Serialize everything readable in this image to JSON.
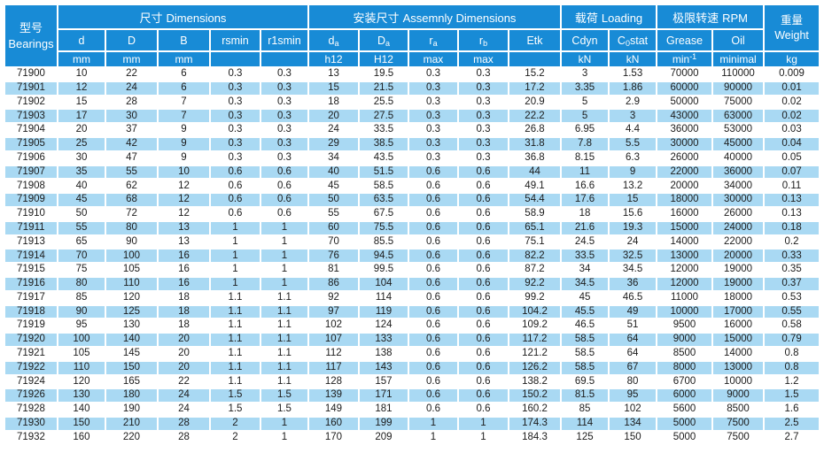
{
  "colors": {
    "header_blue": "#188bd6",
    "stripe_blue": "#a9d9f3",
    "row_white": "#ffffff",
    "header_text": "#ffffff",
    "data_text": "#1c1c1c"
  },
  "table": {
    "groups": {
      "bearings": {
        "zh": "型号",
        "en": "Bearings"
      },
      "dimensions": {
        "zh": "尺寸",
        "en": "Dimensions"
      },
      "assembly": {
        "zh": "安装尺寸",
        "en": "Assemnly Dimensions"
      },
      "loading": {
        "zh": "载荷",
        "en": "Loading"
      },
      "rpm": {
        "zh": "极限转速",
        "en": "RPM"
      },
      "weight": {
        "zh": "重量",
        "en": "Weight"
      }
    },
    "columns": [
      {
        "pre": "d"
      },
      {
        "pre": "D"
      },
      {
        "pre": "B"
      },
      {
        "pre": "rsmin"
      },
      {
        "pre": "r1smin"
      },
      {
        "pre": "d",
        "sub": "a"
      },
      {
        "pre": "D",
        "sub": "a"
      },
      {
        "pre": "r",
        "sub": "a"
      },
      {
        "pre": "r",
        "sub": "b"
      },
      {
        "pre": "Etk"
      },
      {
        "pre": "Cdyn"
      },
      {
        "pre": "C",
        "sub": "0",
        "post": "stat"
      },
      {
        "pre": "Grease"
      },
      {
        "pre": "Oil"
      }
    ],
    "units": [
      {
        "pre": "mm"
      },
      {
        "pre": "mm"
      },
      {
        "pre": "mm"
      },
      {
        "pre": ""
      },
      {
        "pre": ""
      },
      {
        "pre": "h12"
      },
      {
        "pre": "H12"
      },
      {
        "pre": "max"
      },
      {
        "pre": "max"
      },
      {
        "pre": ""
      },
      {
        "pre": "kN"
      },
      {
        "pre": "kN"
      },
      {
        "pre": "min",
        "sup": "-1"
      },
      {
        "pre": "minimal"
      },
      {
        "pre": "kg"
      }
    ],
    "rows": [
      [
        "71900",
        "10",
        "22",
        "6",
        "0.3",
        "0.3",
        "13",
        "19.5",
        "0.3",
        "0.3",
        "15.2",
        "3",
        "1.53",
        "70000",
        "110000",
        "0.009"
      ],
      [
        "71901",
        "12",
        "24",
        "6",
        "0.3",
        "0.3",
        "15",
        "21.5",
        "0.3",
        "0.3",
        "17.2",
        "3.35",
        "1.86",
        "60000",
        "90000",
        "0.01"
      ],
      [
        "71902",
        "15",
        "28",
        "7",
        "0.3",
        "0.3",
        "18",
        "25.5",
        "0.3",
        "0.3",
        "20.9",
        "5",
        "2.9",
        "50000",
        "75000",
        "0.02"
      ],
      [
        "71903",
        "17",
        "30",
        "7",
        "0.3",
        "0.3",
        "20",
        "27.5",
        "0.3",
        "0.3",
        "22.2",
        "5",
        "3",
        "43000",
        "63000",
        "0.02"
      ],
      [
        "71904",
        "20",
        "37",
        "9",
        "0.3",
        "0.3",
        "24",
        "33.5",
        "0.3",
        "0.3",
        "26.8",
        "6.95",
        "4.4",
        "36000",
        "53000",
        "0.03"
      ],
      [
        "71905",
        "25",
        "42",
        "9",
        "0.3",
        "0.3",
        "29",
        "38.5",
        "0.3",
        "0.3",
        "31.8",
        "7.8",
        "5.5",
        "30000",
        "45000",
        "0.04"
      ],
      [
        "71906",
        "30",
        "47",
        "9",
        "0.3",
        "0.3",
        "34",
        "43.5",
        "0.3",
        "0.3",
        "36.8",
        "8.15",
        "6.3",
        "26000",
        "40000",
        "0.05"
      ],
      [
        "71907",
        "35",
        "55",
        "10",
        "0.6",
        "0.6",
        "40",
        "51.5",
        "0.6",
        "0.6",
        "44",
        "11",
        "9",
        "22000",
        "36000",
        "0.07"
      ],
      [
        "71908",
        "40",
        "62",
        "12",
        "0.6",
        "0.6",
        "45",
        "58.5",
        "0.6",
        "0.6",
        "49.1",
        "16.6",
        "13.2",
        "20000",
        "34000",
        "0.11"
      ],
      [
        "71909",
        "45",
        "68",
        "12",
        "0.6",
        "0.6",
        "50",
        "63.5",
        "0.6",
        "0.6",
        "54.4",
        "17.6",
        "15",
        "18000",
        "30000",
        "0.13"
      ],
      [
        "71910",
        "50",
        "72",
        "12",
        "0.6",
        "0.6",
        "55",
        "67.5",
        "0.6",
        "0.6",
        "58.9",
        "18",
        "15.6",
        "16000",
        "26000",
        "0.13"
      ],
      [
        "71911",
        "55",
        "80",
        "13",
        "1",
        "1",
        "60",
        "75.5",
        "0.6",
        "0.6",
        "65.1",
        "21.6",
        "19.3",
        "15000",
        "24000",
        "0.18"
      ],
      [
        "71913",
        "65",
        "90",
        "13",
        "1",
        "1",
        "70",
        "85.5",
        "0.6",
        "0.6",
        "75.1",
        "24.5",
        "24",
        "14000",
        "22000",
        "0.2"
      ],
      [
        "71914",
        "70",
        "100",
        "16",
        "1",
        "1",
        "76",
        "94.5",
        "0.6",
        "0.6",
        "82.2",
        "33.5",
        "32.5",
        "13000",
        "20000",
        "0.33"
      ],
      [
        "71915",
        "75",
        "105",
        "16",
        "1",
        "1",
        "81",
        "99.5",
        "0.6",
        "0.6",
        "87.2",
        "34",
        "34.5",
        "12000",
        "19000",
        "0.35"
      ],
      [
        "71916",
        "80",
        "110",
        "16",
        "1",
        "1",
        "86",
        "104",
        "0.6",
        "0.6",
        "92.2",
        "34.5",
        "36",
        "12000",
        "19000",
        "0.37"
      ],
      [
        "71917",
        "85",
        "120",
        "18",
        "1.1",
        "1.1",
        "92",
        "114",
        "0.6",
        "0.6",
        "99.2",
        "45",
        "46.5",
        "11000",
        "18000",
        "0.53"
      ],
      [
        "71918",
        "90",
        "125",
        "18",
        "1.1",
        "1.1",
        "97",
        "119",
        "0.6",
        "0.6",
        "104.2",
        "45.5",
        "49",
        "10000",
        "17000",
        "0.55"
      ],
      [
        "71919",
        "95",
        "130",
        "18",
        "1.1",
        "1.1",
        "102",
        "124",
        "0.6",
        "0.6",
        "109.2",
        "46.5",
        "51",
        "9500",
        "16000",
        "0.58"
      ],
      [
        "71920",
        "100",
        "140",
        "20",
        "1.1",
        "1.1",
        "107",
        "133",
        "0.6",
        "0.6",
        "117.2",
        "58.5",
        "64",
        "9000",
        "15000",
        "0.79"
      ],
      [
        "71921",
        "105",
        "145",
        "20",
        "1.1",
        "1.1",
        "112",
        "138",
        "0.6",
        "0.6",
        "121.2",
        "58.5",
        "64",
        "8500",
        "14000",
        "0.8"
      ],
      [
        "71922",
        "110",
        "150",
        "20",
        "1.1",
        "1.1",
        "117",
        "143",
        "0.6",
        "0.6",
        "126.2",
        "58.5",
        "67",
        "8000",
        "13000",
        "0.8"
      ],
      [
        "71924",
        "120",
        "165",
        "22",
        "1.1",
        "1.1",
        "128",
        "157",
        "0.6",
        "0.6",
        "138.2",
        "69.5",
        "80",
        "6700",
        "10000",
        "1.2"
      ],
      [
        "71926",
        "130",
        "180",
        "24",
        "1.5",
        "1.5",
        "139",
        "171",
        "0.6",
        "0.6",
        "150.2",
        "81.5",
        "95",
        "6000",
        "9000",
        "1.5"
      ],
      [
        "71928",
        "140",
        "190",
        "24",
        "1.5",
        "1.5",
        "149",
        "181",
        "0.6",
        "0.6",
        "160.2",
        "85",
        "102",
        "5600",
        "8500",
        "1.6"
      ],
      [
        "71930",
        "150",
        "210",
        "28",
        "2",
        "1",
        "160",
        "199",
        "1",
        "1",
        "174.3",
        "114",
        "134",
        "5000",
        "7500",
        "2.5"
      ],
      [
        "71932",
        "160",
        "220",
        "28",
        "2",
        "1",
        "170",
        "209",
        "1",
        "1",
        "184.3",
        "125",
        "150",
        "5000",
        "7500",
        "2.7"
      ]
    ]
  }
}
